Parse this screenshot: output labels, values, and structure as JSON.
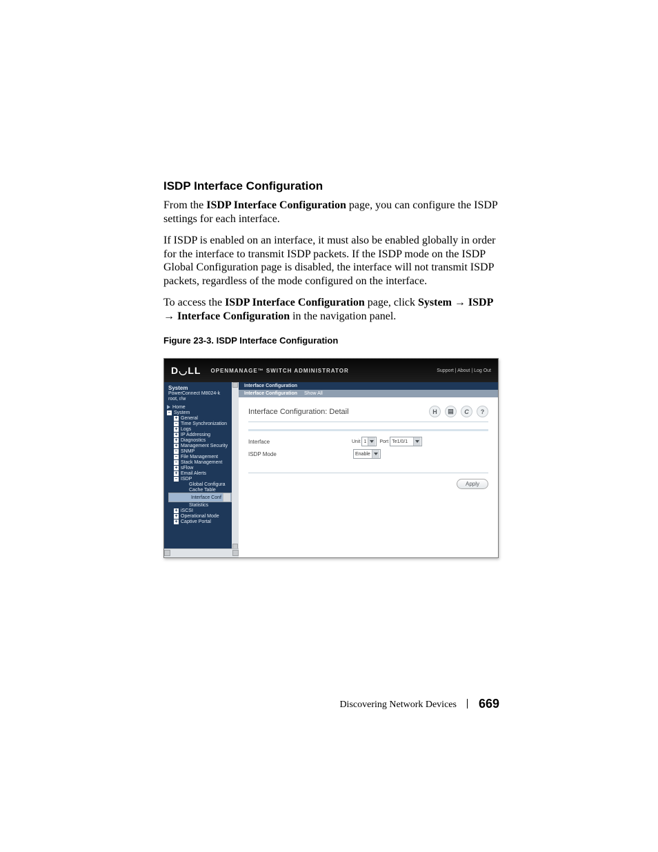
{
  "heading": "ISDP Interface Configuration",
  "paragraphs": {
    "p1_a": "From the ",
    "p1_b": "ISDP Interface Configuration",
    "p1_c": " page, you can configure the ISDP settings for each interface.",
    "p2": "If ISDP is enabled on an interface, it must also be enabled globally in order for the interface to transmit ISDP packets. If the ISDP mode on the ISDP Global Configuration page is disabled, the interface will not transmit ISDP packets, regardless of the mode configured on the interface.",
    "p3_a": "To access the ",
    "p3_b": "ISDP Interface Configuration",
    "p3_c": " page, click ",
    "p3_sys": "System",
    "p3_isdp": "ISDP",
    "p3_if": "Interface Configuration",
    "p3_end": " in the navigation panel."
  },
  "arrow": " → ",
  "figcap": "Figure 23-3.    ISDP Interface Configuration",
  "shot": {
    "brand_logo": "D◡LL",
    "brand_title": "OPENMANAGE™ SWITCH ADMINISTRATOR",
    "top_links": "Support  |  About  |  Log Out",
    "left": {
      "sys": "System",
      "model": "PowerConnect M8024-k",
      "user": "root, r/w",
      "items": [
        {
          "lvl": "lvl1",
          "icon": "tri",
          "label": "Home"
        },
        {
          "lvl": "lvl1",
          "icon": "box-",
          "label": "System"
        },
        {
          "lvl": "lvl2",
          "icon": "box+",
          "label": "General"
        },
        {
          "lvl": "lvl2",
          "icon": "box-",
          "label": "Time Synchronization"
        },
        {
          "lvl": "lvl2",
          "icon": "box+",
          "label": "Logs"
        },
        {
          "lvl": "lvl2",
          "icon": "box+",
          "label": "IP Addressing"
        },
        {
          "lvl": "lvl2",
          "icon": "box+",
          "label": "Diagnostics"
        },
        {
          "lvl": "lvl2",
          "icon": "box+",
          "label": "Management Security"
        },
        {
          "lvl": "lvl2",
          "icon": "box-",
          "label": "SNMP"
        },
        {
          "lvl": "lvl2",
          "icon": "box-",
          "label": "File Management"
        },
        {
          "lvl": "lvl2",
          "icon": "box-",
          "label": "Stack Management"
        },
        {
          "lvl": "lvl2",
          "icon": "box+",
          "label": "sFlow"
        },
        {
          "lvl": "lvl2",
          "icon": "box+",
          "label": "Email Alerts"
        },
        {
          "lvl": "lvl2",
          "icon": "box-",
          "label": "ISDP"
        },
        {
          "lvl": "lvl4",
          "icon": "",
          "label": "Global Configura"
        },
        {
          "lvl": "lvl4",
          "icon": "",
          "label": "Cache Table"
        },
        {
          "lvl": "lvl4 sel",
          "icon": "",
          "label": "Interface Conf"
        },
        {
          "lvl": "lvl4",
          "icon": "",
          "label": "Statistics"
        },
        {
          "lvl": "lvl2",
          "icon": "box+",
          "label": "iSCSI"
        },
        {
          "lvl": "lvl2",
          "icon": "box+",
          "label": "Operational Mode"
        },
        {
          "lvl": "lvl2",
          "icon": "box+",
          "label": "Captive Portal"
        }
      ]
    },
    "main": {
      "crumb": "Interface Configuration",
      "tab_active": "Interface Configuration",
      "tab_2": "Show All",
      "detail_title": "Interface Configuration: Detail",
      "icons": {
        "save": "H",
        "print": "▤",
        "refresh": "C",
        "help": "?"
      },
      "row1_label": "Interface",
      "unit_lbl": "Unit",
      "unit_val": "1",
      "port_lbl": "Port",
      "port_val": "Te1/0/1",
      "row2_label": "ISDP Mode",
      "mode_val": "Enable",
      "apply": "Apply"
    }
  },
  "footer": {
    "section": "Discovering Network Devices",
    "page": "669"
  }
}
